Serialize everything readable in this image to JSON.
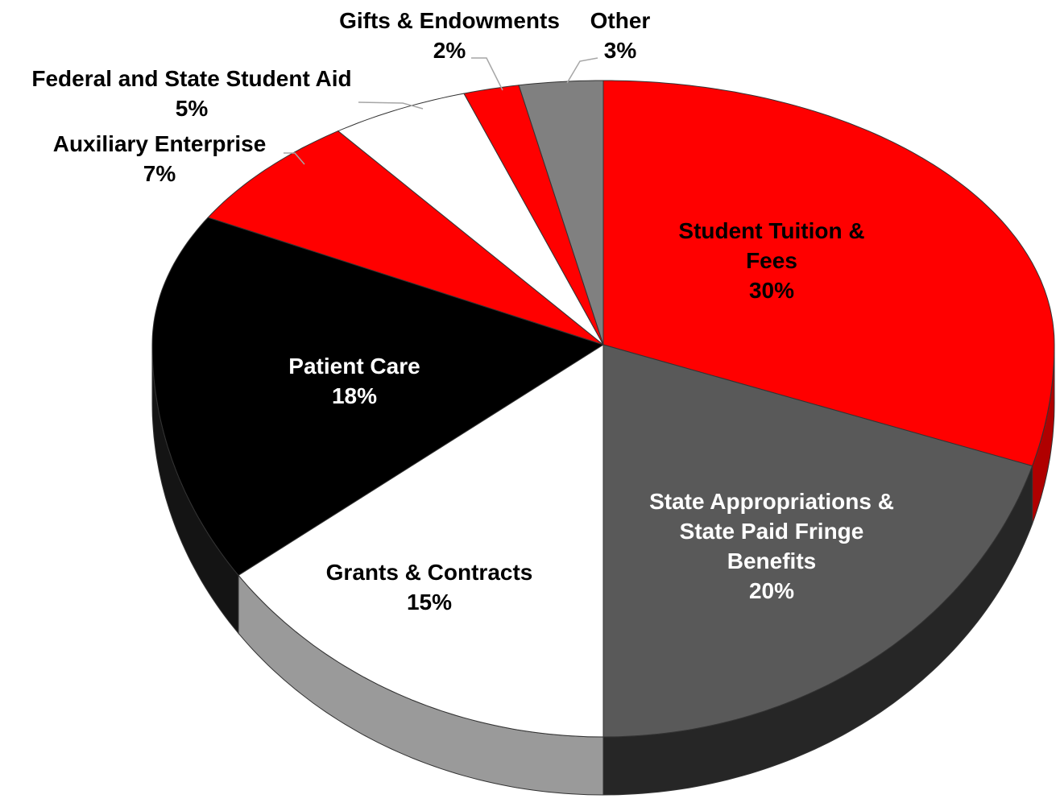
{
  "chart_data": {
    "type": "pie",
    "categories": [
      "Student Tuition & Fees",
      "State Appropriations & State Paid Fringe Benefits",
      "Grants & Contracts",
      "Patient Care",
      "Auxiliary Enterprise",
      "Federal and State Student Aid",
      "Gifts & Endowments",
      "Other"
    ],
    "values": [
      30,
      20,
      15,
      18,
      7,
      5,
      2,
      3
    ],
    "value_labels": [
      "30%",
      "20%",
      "15%",
      "18%",
      "7%",
      "5%",
      "2%",
      "3%"
    ],
    "colors": [
      "#ff0000",
      "#595959",
      "#ffffff",
      "#000000",
      "#ff0000",
      "#ffffff",
      "#ff0000",
      "#808080"
    ]
  }
}
